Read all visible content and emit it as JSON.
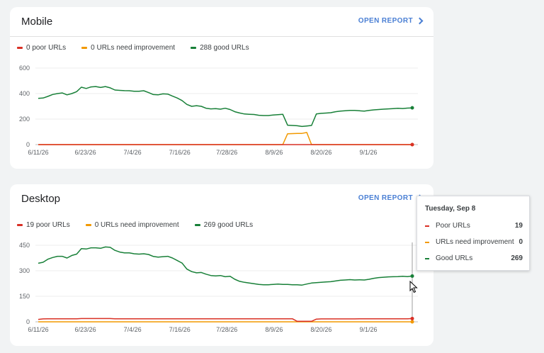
{
  "colors": {
    "poor": "#d93025",
    "improve": "#f29900",
    "good": "#188038"
  },
  "panels": [
    {
      "title": "Mobile",
      "open_report": "OPEN REPORT",
      "legend": [
        {
          "label": "0 poor URLs",
          "color": "#d93025"
        },
        {
          "label": "0 URLs need improvement",
          "color": "#f29900"
        },
        {
          "label": "288 good URLs",
          "color": "#188038"
        }
      ]
    },
    {
      "title": "Desktop",
      "open_report": "OPEN REPORT",
      "legend": [
        {
          "label": "19 poor URLs",
          "color": "#d93025"
        },
        {
          "label": "0 URLs need improvement",
          "color": "#f29900"
        },
        {
          "label": "269 good URLs",
          "color": "#188038"
        }
      ]
    }
  ],
  "chart_data": [
    {
      "type": "line",
      "x_labels": [
        "6/11/26",
        "6/23/26",
        "7/4/26",
        "7/16/26",
        "7/28/26",
        "8/9/26",
        "8/20/26",
        "9/1/26"
      ],
      "y_ticks": [
        0,
        200,
        400,
        600
      ],
      "ylim": [
        0,
        600
      ],
      "series": [
        {
          "name": "good",
          "color": "#188038",
          "values": [
            362,
            365,
            378,
            393,
            400,
            405,
            390,
            400,
            415,
            450,
            440,
            452,
            455,
            448,
            455,
            445,
            428,
            425,
            423,
            422,
            418,
            418,
            422,
            408,
            392,
            390,
            398,
            396,
            380,
            365,
            345,
            315,
            300,
            305,
            300,
            285,
            280,
            282,
            278,
            285,
            275,
            258,
            248,
            240,
            238,
            236,
            230,
            228,
            228,
            232,
            235,
            238,
            152,
            150,
            148,
            142,
            146,
            150,
            240,
            245,
            247,
            250,
            258,
            262,
            265,
            268,
            268,
            265,
            262,
            268,
            272,
            275,
            278,
            280,
            282,
            285,
            283,
            286,
            288
          ]
        },
        {
          "name": "need improvement",
          "color": "#f29900",
          "values": [
            0,
            0,
            0,
            0,
            0,
            0,
            0,
            0,
            0,
            0,
            0,
            0,
            0,
            0,
            0,
            0,
            0,
            0,
            0,
            0,
            0,
            0,
            0,
            0,
            0,
            0,
            0,
            0,
            0,
            0,
            0,
            0,
            0,
            0,
            0,
            0,
            0,
            0,
            0,
            0,
            0,
            0,
            0,
            0,
            0,
            0,
            0,
            0,
            0,
            0,
            0,
            0,
            85,
            86,
            87,
            88,
            95,
            0,
            0,
            0,
            0,
            0,
            0,
            0,
            0,
            0,
            0,
            0,
            0,
            0,
            0,
            0,
            0,
            0,
            0,
            0,
            0,
            0,
            0
          ]
        },
        {
          "name": "poor",
          "color": "#d93025",
          "values": [
            0,
            0,
            0,
            0,
            0,
            0,
            0,
            0,
            0,
            0,
            0,
            0,
            0,
            0,
            0,
            0,
            0,
            0,
            0,
            0,
            0,
            0,
            0,
            0,
            0,
            0,
            0,
            0,
            0,
            0,
            0,
            0,
            0,
            0,
            0,
            0,
            0,
            0,
            0,
            0,
            0,
            0,
            0,
            0,
            0,
            0,
            0,
            0,
            0,
            0,
            0,
            0,
            0,
            0,
            0,
            0,
            0,
            0,
            0,
            0,
            0,
            0,
            0,
            0,
            0,
            0,
            0,
            0,
            0,
            0,
            0,
            0,
            0,
            0,
            0,
            0,
            0,
            0,
            0
          ]
        }
      ]
    },
    {
      "type": "line",
      "x_labels": [
        "6/11/26",
        "6/23/26",
        "7/4/26",
        "7/16/26",
        "7/28/26",
        "8/9/26",
        "8/20/26",
        "9/1/26"
      ],
      "y_ticks": [
        0,
        150,
        300,
        450
      ],
      "ylim": [
        0,
        450
      ],
      "series": [
        {
          "name": "good",
          "color": "#188038",
          "values": [
            344,
            350,
            368,
            378,
            385,
            385,
            375,
            390,
            398,
            430,
            428,
            435,
            435,
            432,
            440,
            438,
            420,
            410,
            405,
            405,
            400,
            398,
            400,
            396,
            384,
            380,
            383,
            385,
            375,
            360,
            345,
            310,
            295,
            288,
            290,
            280,
            272,
            270,
            272,
            265,
            268,
            250,
            238,
            232,
            228,
            224,
            220,
            218,
            218,
            220,
            222,
            220,
            220,
            218,
            218,
            216,
            222,
            228,
            230,
            232,
            234,
            236,
            240,
            244,
            246,
            248,
            246,
            247,
            246,
            250,
            256,
            260,
            262,
            264,
            265,
            266,
            268,
            266,
            269
          ]
        },
        {
          "name": "need improvement",
          "color": "#f29900",
          "values": [
            0,
            0,
            0,
            0,
            0,
            0,
            0,
            0,
            0,
            0,
            0,
            0,
            0,
            0,
            0,
            0,
            0,
            0,
            0,
            0,
            0,
            0,
            0,
            0,
            0,
            0,
            0,
            0,
            0,
            0,
            0,
            0,
            0,
            0,
            0,
            0,
            0,
            0,
            0,
            0,
            0,
            0,
            0,
            0,
            0,
            0,
            0,
            0,
            0,
            0,
            0,
            0,
            0,
            0,
            0,
            0,
            0,
            0,
            0,
            0,
            0,
            0,
            0,
            0,
            0,
            0,
            0,
            0,
            0,
            0,
            0,
            0,
            0,
            0,
            0,
            0,
            0,
            0,
            0
          ]
        },
        {
          "name": "poor",
          "color": "#d93025",
          "values": [
            14,
            17,
            18,
            18,
            18,
            18,
            18,
            18,
            18,
            19,
            19,
            19,
            19,
            19,
            19,
            19,
            18,
            18,
            18,
            18,
            18,
            18,
            18,
            18,
            18,
            18,
            18,
            18,
            18,
            18,
            18,
            18,
            18,
            18,
            18,
            18,
            18,
            18,
            18,
            18,
            18,
            18,
            18,
            18,
            18,
            18,
            18,
            18,
            18,
            18,
            18,
            18,
            18,
            18,
            3,
            3,
            3,
            3,
            16,
            17,
            17,
            17,
            17,
            17,
            17,
            17,
            17,
            18,
            18,
            18,
            18,
            18,
            18,
            18,
            18,
            18,
            18,
            18,
            19
          ]
        }
      ],
      "hover_index": 78
    }
  ],
  "tooltip": {
    "date": "Tuesday, Sep 8",
    "rows": [
      {
        "label": "Poor URLs",
        "value": "19",
        "color": "#d93025"
      },
      {
        "label": "URLs need improvement",
        "value": "0",
        "color": "#f29900"
      },
      {
        "label": "Good URLs",
        "value": "269",
        "color": "#188038"
      }
    ]
  }
}
